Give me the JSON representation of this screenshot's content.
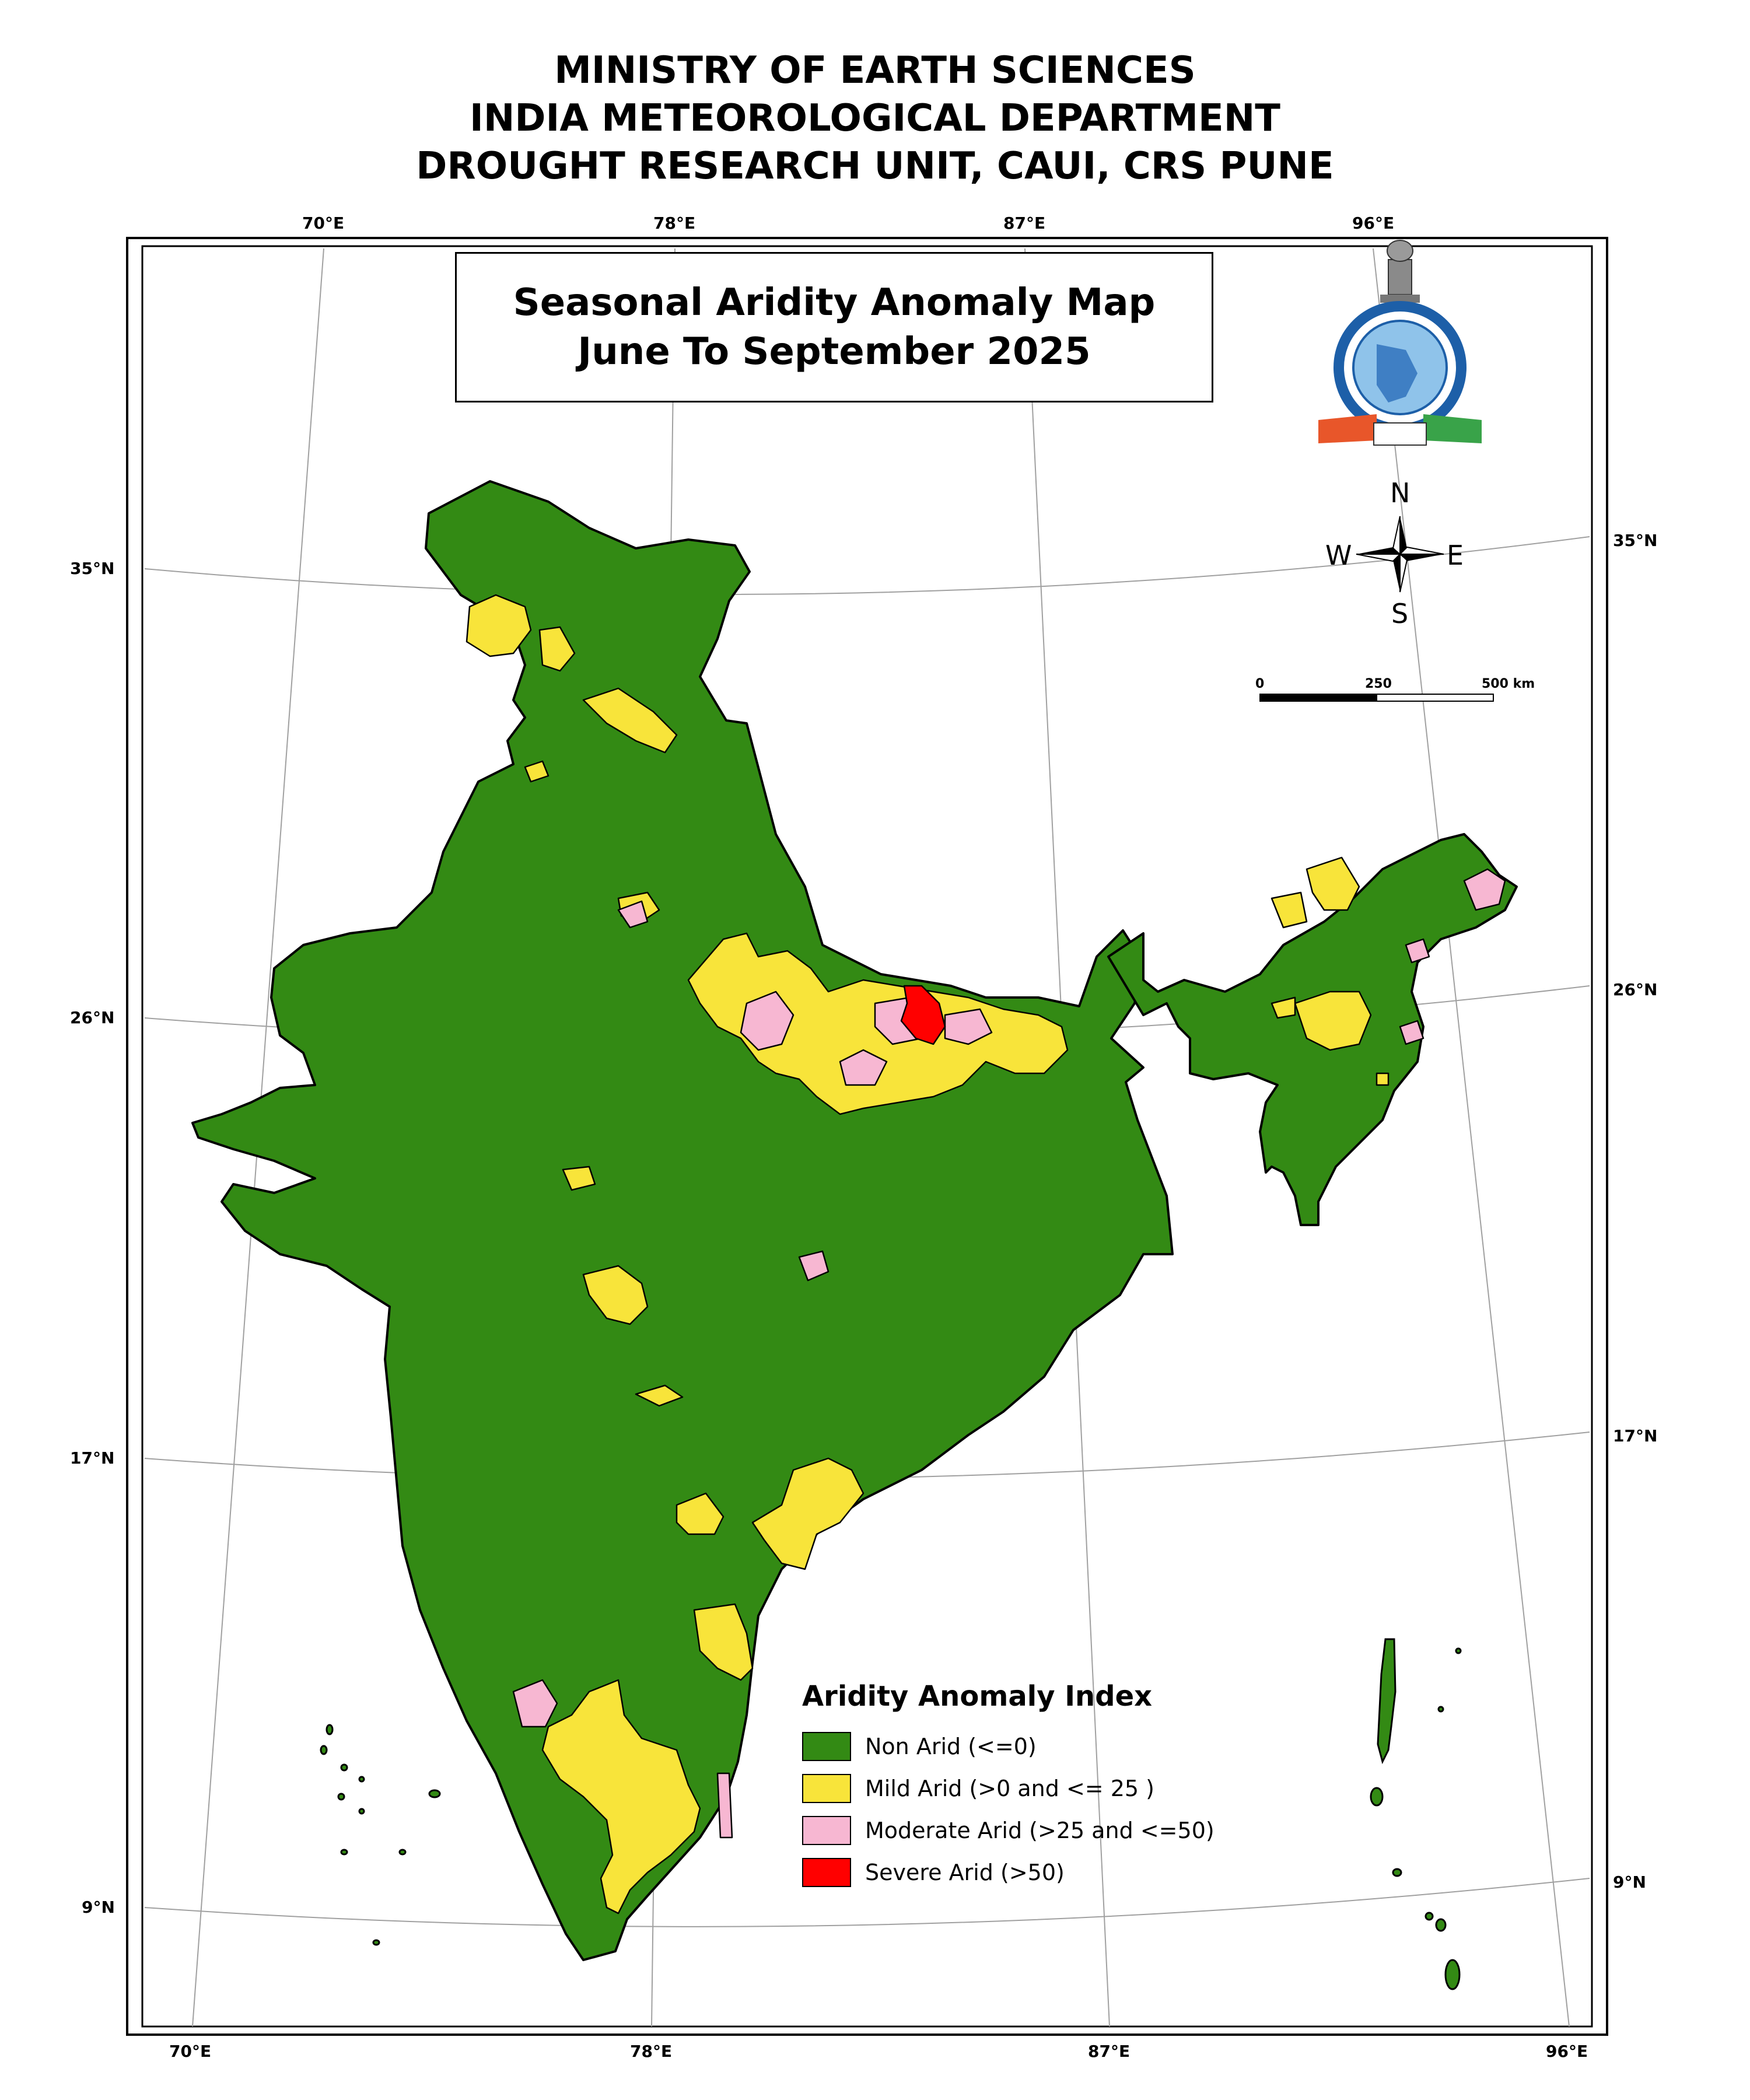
{
  "header": {
    "line1": "MINISTRY OF EARTH SCIENCES",
    "line2": "INDIA METEOROLOGICAL DEPARTMENT",
    "line3": "DROUGHT RESEARCH UNIT, CAUI, CRS PUNE"
  },
  "map_title": {
    "line1": "Seasonal Aridity Anomaly Map",
    "line2": "June To September 2025"
  },
  "graticule": {
    "longitudes": [
      "70°E",
      "78°E",
      "87°E",
      "96°E"
    ],
    "latitudes": [
      "35°N",
      "26°N",
      "17°N",
      "9°N"
    ]
  },
  "compass": {
    "n": "N",
    "s": "S",
    "e": "E",
    "w": "W"
  },
  "scale_bar": {
    "zero": "0",
    "mid": "250",
    "end": "500 km"
  },
  "legend": {
    "title": "Aridity Anomaly Index",
    "items": [
      {
        "label": "Non Arid (<=0)",
        "color": "#338a14"
      },
      {
        "label": "Mild Arid (>0 and <= 25 )",
        "color": "#f8e43a"
      },
      {
        "label": "Moderate Arid (>25 and <=50)",
        "color": "#f7b7d2"
      },
      {
        "label": "Severe Arid (>50)",
        "color": "#ff0000"
      }
    ]
  },
  "logo": {
    "name": "imd-emblem"
  }
}
